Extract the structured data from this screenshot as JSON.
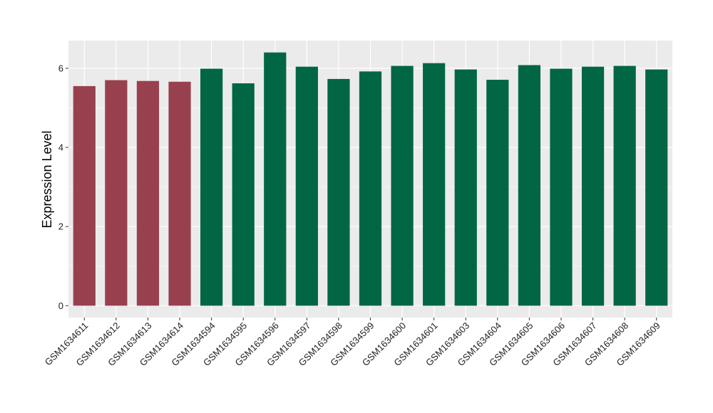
{
  "chart_data": {
    "type": "bar",
    "title": "",
    "xlabel": "",
    "ylabel": "Expression Level",
    "ylim": [
      -0.3,
      6.7
    ],
    "yticks": [
      0,
      2,
      4,
      6
    ],
    "grid": true,
    "legend": "none",
    "categories": [
      "GSM1634611",
      "GSM1634612",
      "GSM1634613",
      "GSM1634614",
      "GSM1634594",
      "GSM1634595",
      "GSM1634596",
      "GSM1634597",
      "GSM1634598",
      "GSM1634599",
      "GSM1634600",
      "GSM1634601",
      "GSM1634603",
      "GSM1634604",
      "GSM1634605",
      "GSM1634606",
      "GSM1634607",
      "GSM1634608",
      "GSM1634609"
    ],
    "values": [
      5.55,
      5.7,
      5.68,
      5.66,
      5.99,
      5.62,
      6.4,
      6.04,
      5.73,
      5.92,
      6.06,
      6.13,
      5.97,
      5.71,
      6.08,
      5.99,
      6.04,
      6.06,
      5.97
    ],
    "groups": [
      "a",
      "a",
      "a",
      "a",
      "b",
      "b",
      "b",
      "b",
      "b",
      "b",
      "b",
      "b",
      "b",
      "b",
      "b",
      "b",
      "b",
      "b",
      "b"
    ],
    "group_colors": {
      "a": "#99404F",
      "b": "#006644"
    },
    "panel_background": "#EBEBEB",
    "grid_color": "#FFFFFF"
  }
}
